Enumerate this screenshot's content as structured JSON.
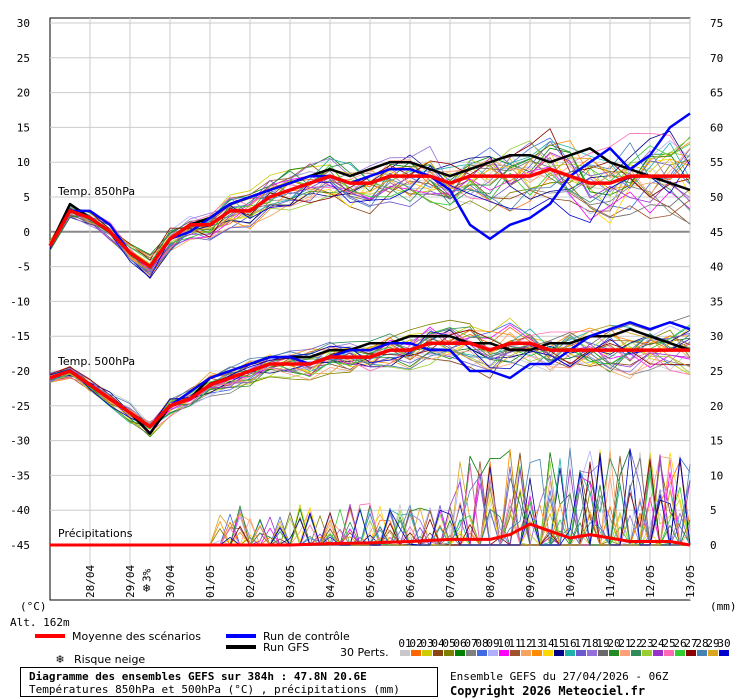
{
  "chart_data": {
    "type": "line",
    "title": "Diagramme des ensembles GEFS sur 384h : 47.8N 20.6E",
    "subtitle": "Températures 850hPa et 500hPa (°C) , précipitations (mm)",
    "left_axis": {
      "unit": "(°C)",
      "ticks": [
        30,
        25,
        20,
        15,
        10,
        5,
        0,
        -5,
        -10,
        -15,
        -20,
        -25,
        -30,
        -35,
        -40,
        -45
      ],
      "ylim": [
        -45,
        30
      ]
    },
    "right_axis": {
      "unit": "(mm)",
      "ticks": [
        75,
        70,
        65,
        60,
        55,
        50,
        45,
        40,
        35,
        30,
        25,
        20,
        15,
        10,
        5,
        0
      ],
      "ylim": [
        0,
        75
      ]
    },
    "altitude": "Alt. 162m",
    "x_labels": [
      "28/04",
      "29/04",
      "30/04",
      "01/05",
      "02/05",
      "03/05",
      "04/05",
      "05/05",
      "06/05",
      "07/05",
      "08/05",
      "09/05",
      "10/05",
      "11/05",
      "12/05",
      "13/05"
    ],
    "x_range_hours": [
      0,
      384
    ],
    "panel_labels": {
      "t850": "Temp. 850hPa",
      "t500": "Temp. 500hPa",
      "precip": "Précipitations"
    },
    "snow_marker": {
      "label": "3%",
      "day": "29/04"
    },
    "t850_mean": {
      "x": [
        0,
        12,
        24,
        36,
        48,
        60,
        72,
        84,
        96,
        108,
        120,
        132,
        144,
        156,
        168,
        180,
        192,
        204,
        216,
        228,
        240,
        252,
        264,
        276,
        288,
        300,
        312,
        324,
        336,
        348,
        360,
        372,
        384
      ],
      "y": [
        -2,
        3,
        2,
        0,
        -3,
        -5,
        -1,
        1,
        1,
        3,
        3,
        5,
        6,
        7,
        8,
        7,
        7,
        8,
        8,
        8,
        7,
        8,
        8,
        8,
        8,
        9,
        8,
        7,
        7,
        8,
        8,
        8,
        8
      ]
    },
    "t850_control": {
      "x": [
        0,
        12,
        24,
        36,
        48,
        60,
        72,
        84,
        96,
        108,
        120,
        132,
        144,
        156,
        168,
        180,
        192,
        204,
        216,
        228,
        240,
        252,
        264,
        276,
        288,
        300,
        312,
        324,
        336,
        348,
        360,
        372,
        384
      ],
      "y": [
        -2,
        3,
        3,
        1,
        -3,
        -5,
        -1,
        0,
        2,
        4,
        5,
        6,
        7,
        8,
        8,
        7,
        8,
        9,
        9,
        8,
        6,
        1,
        -1,
        1,
        2,
        4,
        8,
        10,
        12,
        9,
        11,
        15,
        17
      ]
    },
    "t850_gfs": {
      "x": [
        0,
        12,
        24,
        36,
        48,
        60,
        72,
        84,
        96,
        108,
        120,
        132,
        144,
        156,
        168,
        180,
        192,
        204,
        216,
        228,
        240,
        252,
        264,
        276,
        288,
        300,
        312,
        324,
        336,
        348,
        360,
        372,
        384
      ],
      "y": [
        -2,
        4,
        2,
        0,
        -3,
        -5,
        -1,
        1,
        2,
        4,
        5,
        6,
        7,
        8,
        9,
        8,
        9,
        10,
        10,
        9,
        8,
        9,
        10,
        11,
        11,
        10,
        11,
        12,
        10,
        9,
        8,
        7,
        6
      ]
    },
    "t500_mean": {
      "x": [
        0,
        12,
        24,
        36,
        48,
        60,
        72,
        84,
        96,
        108,
        120,
        132,
        144,
        156,
        168,
        180,
        192,
        204,
        216,
        228,
        240,
        252,
        264,
        276,
        288,
        300,
        312,
        324,
        336,
        348,
        360,
        372,
        384
      ],
      "y": [
        -21,
        -20,
        -22,
        -24,
        -26,
        -28,
        -25,
        -24,
        -22,
        -21,
        -20,
        -19,
        -19,
        -19,
        -18,
        -18,
        -18,
        -17,
        -17,
        -16,
        -16,
        -16,
        -17,
        -16,
        -16,
        -17,
        -17,
        -17,
        -17,
        -17,
        -17,
        -17,
        -17
      ]
    },
    "t500_control": {
      "x": [
        0,
        12,
        24,
        36,
        48,
        60,
        72,
        84,
        96,
        108,
        120,
        132,
        144,
        156,
        168,
        180,
        192,
        204,
        216,
        228,
        240,
        252,
        264,
        276,
        288,
        300,
        312,
        324,
        336,
        348,
        360,
        372,
        384
      ],
      "y": [
        -21,
        -20,
        -22,
        -24,
        -26,
        -28,
        -25,
        -23,
        -21,
        -20,
        -19,
        -18,
        -18,
        -19,
        -18,
        -17,
        -17,
        -16,
        -16,
        -17,
        -17,
        -20,
        -20,
        -21,
        -19,
        -19,
        -17,
        -15,
        -14,
        -13,
        -14,
        -13,
        -14
      ]
    },
    "t500_gfs": {
      "x": [
        0,
        12,
        24,
        36,
        48,
        60,
        72,
        84,
        96,
        108,
        120,
        132,
        144,
        156,
        168,
        180,
        192,
        204,
        216,
        228,
        240,
        252,
        264,
        276,
        288,
        300,
        312,
        324,
        336,
        348,
        360,
        372,
        384
      ],
      "y": [
        -21,
        -20,
        -22,
        -24,
        -26,
        -29,
        -25,
        -24,
        -21,
        -20,
        -19,
        -18,
        -18,
        -18,
        -17,
        -17,
        -16,
        -16,
        -15,
        -15,
        -15,
        -16,
        -16,
        -17,
        -17,
        -16,
        -16,
        -15,
        -15,
        -14,
        -15,
        -16,
        -17
      ]
    },
    "precip_mean": {
      "x": [
        0,
        24,
        48,
        72,
        96,
        120,
        144,
        168,
        192,
        216,
        240,
        264,
        276,
        288,
        300,
        312,
        324,
        336,
        348,
        360,
        372,
        384
      ],
      "y": [
        0,
        0,
        0,
        0,
        0,
        0,
        0,
        0.2,
        0.3,
        0.5,
        0.8,
        0.8,
        1.5,
        3,
        2,
        1,
        1.5,
        1,
        0.5,
        0.5,
        0.5,
        0
      ]
    },
    "legend": {
      "mean": "Moyenne des scénarios",
      "control": "Run de contrôle",
      "gfs": "Run GFS",
      "snow": "Risque neige",
      "perts": "30 Perts.",
      "pert_labels": [
        "01",
        "02",
        "03",
        "04",
        "05",
        "06",
        "07",
        "08",
        "09",
        "10",
        "11",
        "12",
        "13",
        "14",
        "15",
        "16",
        "17",
        "18",
        "19",
        "20",
        "21",
        "22",
        "23",
        "24",
        "25",
        "26",
        "27",
        "28",
        "29",
        "30"
      ]
    },
    "colors": {
      "mean": "#ff0000",
      "control": "#0000ff",
      "gfs": "#000000"
    },
    "grid": true
  },
  "footer": {
    "title": "Diagramme des ensembles GEFS sur 384h : 47.8N 20.6E",
    "subtitle": "Températures 850hPa et 500hPa (°C) , précipitations (mm)",
    "run": "Ensemble GEFS du 27/04/2026 - 06Z",
    "copyright": "Copyright 2026 Meteociel.fr"
  }
}
